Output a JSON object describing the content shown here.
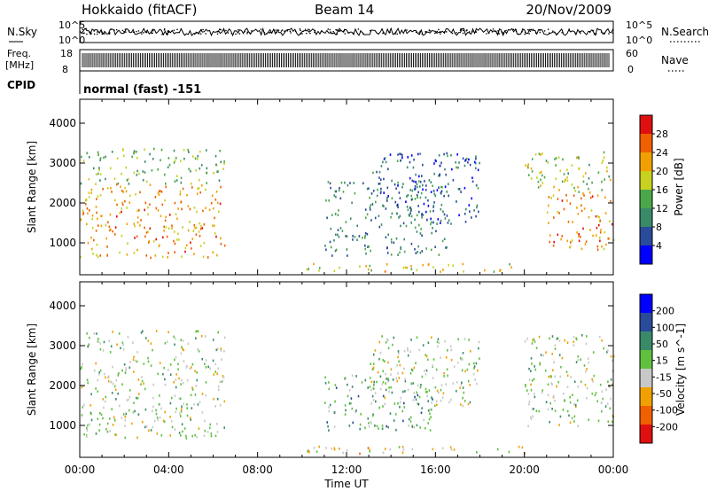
{
  "header": {
    "station": "Hokkaido (fitACF)",
    "beam": "Beam 14",
    "date": "20/Nov/2009"
  },
  "panels": {
    "nsky_label": "N.Sky",
    "nsearch_label": "N.Search",
    "freq_label": "Freq.",
    "freq_unit": "[MHz]",
    "nave_label": "Nave",
    "cpid_label": "CPID",
    "cpid_value": "normal (fast) -151",
    "noise_ticks_left": [
      "10^5",
      "10^0"
    ],
    "noise_ticks_right": [
      "10^5",
      "10^0"
    ],
    "freq_ticks": [
      "18",
      "8"
    ],
    "nave_ticks": [
      "60",
      "0"
    ]
  },
  "colors": {
    "power_scale": [
      "#0000ff",
      "#2a4a9a",
      "#3a8a6a",
      "#4aa84a",
      "#c8d020",
      "#f0a000",
      "#f06000",
      "#e01010"
    ],
    "velocity_scale": [
      "#0000ff",
      "#2a4a9a",
      "#3a8a6a",
      "#60c040",
      "#c8c8c8",
      "#f0a000",
      "#f06000",
      "#e01010"
    ]
  },
  "chart_data": [
    {
      "type": "heatmap",
      "ylabel": "Slant Range [km]",
      "ylim": [
        200,
        4600
      ],
      "yticks": [
        1000,
        2000,
        3000,
        4000
      ],
      "xlim": [
        0,
        24
      ],
      "colorbar_label": "Power [dB]",
      "colorbar_ticks": [
        "4",
        "8",
        "12",
        "16",
        "20",
        "24",
        "28"
      ],
      "colorbar_range": [
        0,
        32
      ],
      "regions": [
        {
          "t0": 0.0,
          "t1": 6.5,
          "r0": 650,
          "r1": 2500,
          "level": 0.72
        },
        {
          "t0": 0.0,
          "t1": 6.5,
          "r0": 2500,
          "r1": 3400,
          "level": 0.45
        },
        {
          "t0": 10.0,
          "t1": 20.0,
          "r0": 300,
          "r1": 500,
          "level": 0.6
        },
        {
          "t0": 11.0,
          "t1": 16.5,
          "r0": 700,
          "r1": 2600,
          "level": 0.3
        },
        {
          "t0": 13.0,
          "t1": 18.0,
          "r0": 1500,
          "r1": 3300,
          "level": 0.22
        },
        {
          "t0": 21.0,
          "t1": 24.0,
          "r0": 800,
          "r1": 2300,
          "level": 0.75
        },
        {
          "t0": 20.0,
          "t1": 24.0,
          "r0": 2300,
          "r1": 3300,
          "level": 0.5
        }
      ]
    },
    {
      "type": "heatmap",
      "ylabel": "Slant Range [km]",
      "ylim": [
        200,
        4600
      ],
      "yticks": [
        1000,
        2000,
        3000,
        4000
      ],
      "xlim": [
        0,
        24
      ],
      "xticks": [
        "00:00",
        "04:00",
        "08:00",
        "12:00",
        "16:00",
        "20:00",
        "00:00"
      ],
      "xlabel": "Time UT",
      "colorbar_label": "Velocity [m s^-1]",
      "colorbar_ticks": [
        "200",
        "100",
        "50",
        "15",
        "-15",
        "-50",
        "-100",
        "-200"
      ],
      "colorbar_range": [
        -250,
        250
      ],
      "regions": [
        {
          "t0": 0.0,
          "t1": 6.5,
          "r0": 700,
          "r1": 3400,
          "level": 0.5
        },
        {
          "t0": 11.0,
          "t1": 16.0,
          "r0": 900,
          "r1": 2300,
          "level": 0.38
        },
        {
          "t0": 10.0,
          "t1": 20.0,
          "r0": 300,
          "r1": 500,
          "level": 0.6
        },
        {
          "t0": 13.0,
          "t1": 18.0,
          "r0": 1500,
          "r1": 3300,
          "level": 0.5
        },
        {
          "t0": 20.0,
          "t1": 24.0,
          "r0": 1000,
          "r1": 3300,
          "level": 0.5
        }
      ]
    }
  ]
}
